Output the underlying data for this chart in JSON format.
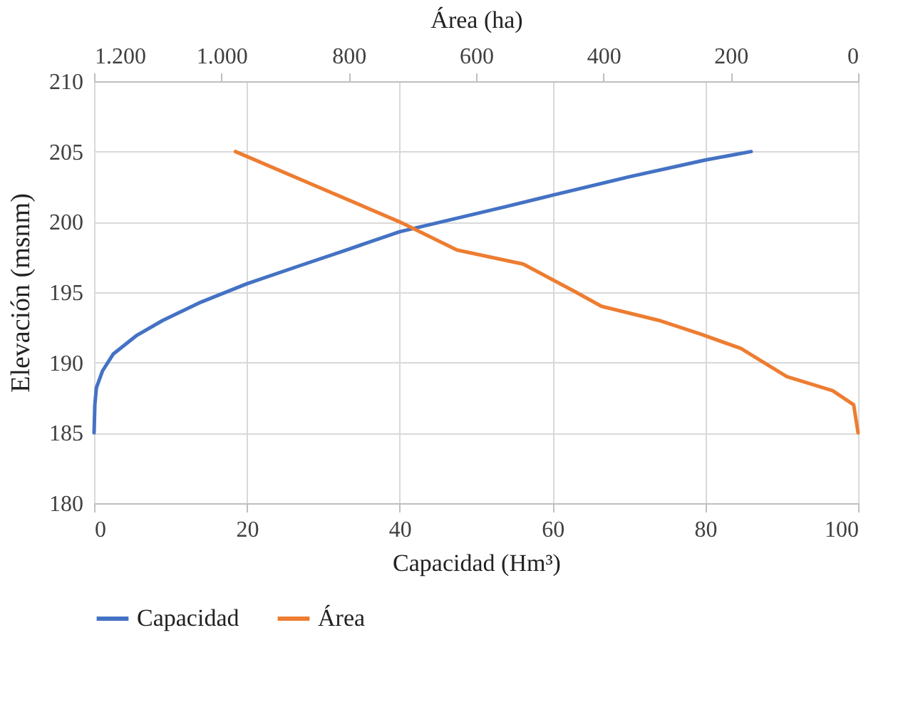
{
  "chart_data": {
    "type": "line",
    "xlabel": "Capacidad (Hm³)",
    "ylabel": "Elevación (msnm)",
    "x2label": "Área (ha)",
    "xlim": [
      0,
      100
    ],
    "xticks": [
      0,
      20,
      40,
      60,
      80,
      100
    ],
    "x2lim": [
      1200,
      0
    ],
    "x2ticks": [
      {
        "value": 1200,
        "label": "1.200"
      },
      {
        "value": 1000,
        "label": "1.000"
      },
      800,
      600,
      400,
      200,
      0
    ],
    "ylim": [
      180,
      210
    ],
    "yticks": [
      180,
      185,
      190,
      195,
      200,
      205,
      210
    ],
    "grid": true,
    "legend": "bottom",
    "line_style": "solid",
    "marker": "none",
    "series": [
      {
        "name": "Capacidad",
        "color": "#4472c4",
        "x": [
          0,
          0.1,
          0.3,
          1.1,
          2.5,
          5.5,
          9,
          14,
          20,
          27,
          33,
          40,
          47.8,
          54,
          60,
          70,
          80,
          86
        ],
        "values": [
          185,
          187,
          188.2,
          189.4,
          190.6,
          191.9,
          193,
          194.3,
          195.6,
          196.9,
          198.0,
          199.3,
          200.3,
          201.1,
          201.9,
          203.2,
          204.4,
          205
        ]
      },
      {
        "name": "Área",
        "color": "#ed7d31",
        "axis": "x2",
        "x": [
          978,
          720,
          630,
          526,
          443,
          403,
          313,
          246,
          184,
          112,
          40,
          7,
          0
        ],
        "values": [
          205,
          200,
          198,
          197,
          195,
          194,
          193,
          192,
          191,
          189,
          188,
          187,
          185
        ]
      }
    ]
  }
}
